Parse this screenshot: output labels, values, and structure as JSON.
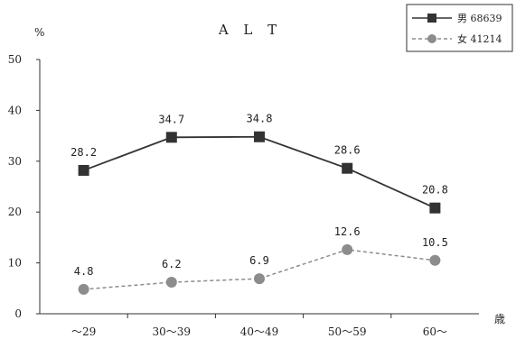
{
  "chart_data": {
    "type": "line",
    "title": "A L T",
    "ylabel": "%",
    "xlabel": "歳",
    "categories": [
      "～29",
      "30～39",
      "40～49",
      "50～59",
      "60～"
    ],
    "ylim": [
      0,
      50
    ],
    "yticks": [
      0,
      10,
      20,
      30,
      40,
      50
    ],
    "grid": false,
    "legend_position": "top-right",
    "series": [
      {
        "name": "男 68639",
        "values": [
          28.2,
          34.7,
          34.8,
          28.6,
          20.8
        ],
        "labels": [
          "28.2",
          "34.7",
          "34.8",
          "28.6",
          "20.8"
        ],
        "color": "#333333",
        "marker": "square",
        "line_style": "solid"
      },
      {
        "name": "女 41214",
        "values": [
          4.8,
          6.2,
          6.9,
          12.6,
          10.5
        ],
        "labels": [
          "4.8",
          "6.2",
          "6.9",
          "12.6",
          "10.5"
        ],
        "color": "#8c8c8c",
        "marker": "circle",
        "line_style": "dashed"
      }
    ]
  }
}
